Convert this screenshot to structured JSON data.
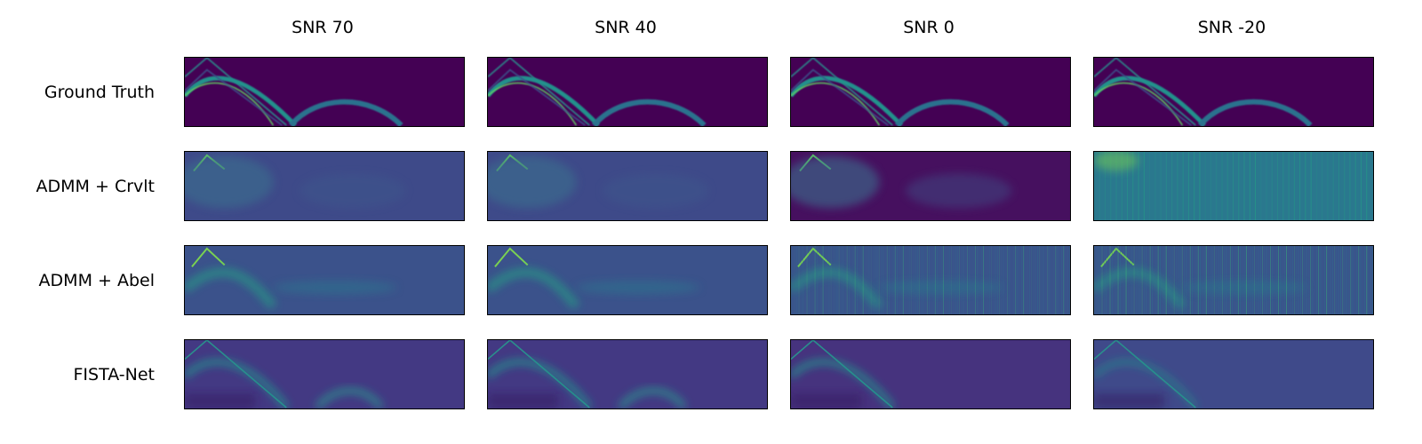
{
  "figure": {
    "columns": [
      "SNR 70",
      "SNR 40",
      "SNR 0",
      "SNR -20"
    ],
    "rows": [
      "Ground Truth",
      "ADMM + Crvlt",
      "ADMM + Abel",
      "FISTA-Net"
    ]
  },
  "colormap": {
    "name": "viridis",
    "stops": [
      "#440154",
      "#3b528b",
      "#21918c",
      "#5ec962",
      "#fde725"
    ]
  },
  "panel_backgrounds": [
    [
      "#440154",
      "#440154",
      "#440154",
      "#440154"
    ],
    [
      "#3e4a89",
      "#3e4a89",
      "#46105f",
      "#2a788e"
    ],
    [
      "#3b528b",
      "#3b528b",
      "#3b528b",
      "#3b528b"
    ],
    [
      "#433983",
      "#433983",
      "#46337e",
      "#3f4a8a"
    ]
  ]
}
